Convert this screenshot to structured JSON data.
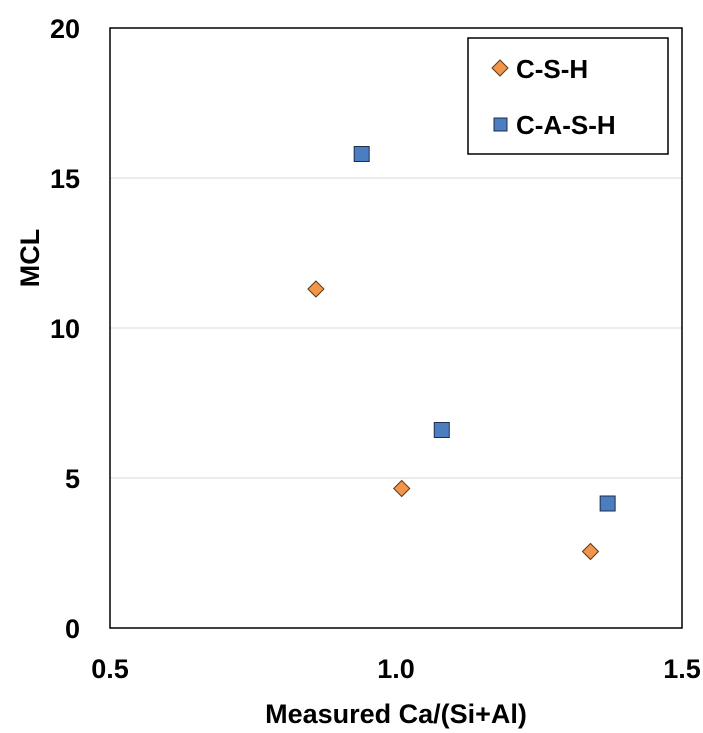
{
  "chart_data": {
    "type": "scatter",
    "title": "",
    "xlabel": "Measured Ca/(Si+Al)",
    "ylabel": "MCL",
    "xlim": [
      0.5,
      1.5
    ],
    "ylim": [
      0,
      20
    ],
    "x_ticks": [
      "0.5",
      "1.0",
      "1.5"
    ],
    "y_ticks": [
      "0",
      "5",
      "10",
      "15",
      "20"
    ],
    "x_tick_values": [
      0.5,
      1.0,
      1.5
    ],
    "y_tick_values": [
      0,
      5,
      10,
      15,
      20
    ],
    "grid": "horizontal",
    "legend_position": "top-right",
    "series": [
      {
        "name": "C-S-H",
        "marker": "diamond",
        "color": "#F0954A",
        "points": [
          {
            "x": 0.86,
            "y": 11.3
          },
          {
            "x": 1.01,
            "y": 4.65
          },
          {
            "x": 1.34,
            "y": 2.55
          }
        ]
      },
      {
        "name": "C-A-S-H",
        "marker": "square",
        "color": "#4B7EC1",
        "points": [
          {
            "x": 0.94,
            "y": 15.8
          },
          {
            "x": 1.08,
            "y": 6.6
          },
          {
            "x": 1.37,
            "y": 4.15
          }
        ]
      }
    ]
  }
}
